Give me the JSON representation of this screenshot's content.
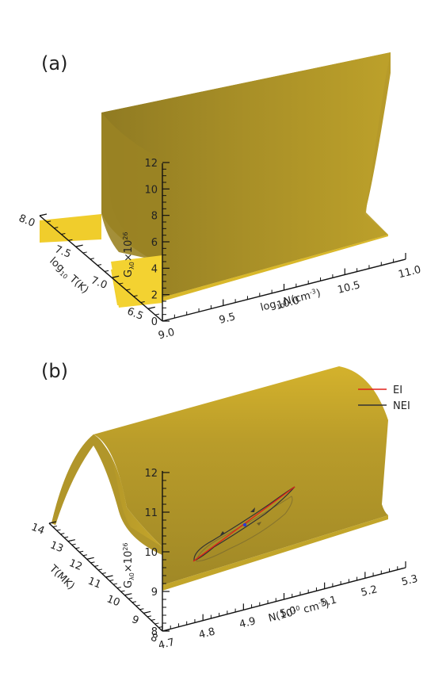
{
  "chart_data": [
    {
      "type": "surface",
      "panel_label": "(a)",
      "x_axis": {
        "label": "log",
        "label_sub": "10",
        "label_rest": "N(cm",
        "label_sup": "-3",
        "label_close": ")",
        "range": [
          9.0,
          11.0
        ],
        "ticks": [
          "9.0",
          "9.5",
          "10.0",
          "10.5",
          "11.0"
        ]
      },
      "y_axis": {
        "label": "log",
        "label_sub": "10",
        "label_rest": " T(K)",
        "range": [
          6.3,
          8.0
        ],
        "ticks": [
          "6.5",
          "7.0",
          "7.5",
          "8.0"
        ]
      },
      "z_axis": {
        "label": "G",
        "label_sub": "λ0",
        "label_rest": "×10",
        "label_sup": "26",
        "range": [
          0,
          12
        ],
        "ticks": [
          "0",
          "2",
          "4",
          "6",
          "8",
          "10",
          "12"
        ]
      },
      "surface": {
        "peak_logT": 7.3,
        "peak_value": 12.3,
        "floor_value": 0.2,
        "description_color": "#d6b420"
      }
    },
    {
      "type": "surface",
      "panel_label": "(b)",
      "x_axis": {
        "label": "N(10",
        "label_sup": "10",
        "label_rest": " cm",
        "label_sup2": "-3",
        "label_close": ")",
        "range": [
          4.7,
          5.3
        ],
        "ticks": [
          "4.7",
          "4.8",
          "4.9",
          "5.0",
          "5.1",
          "5.2",
          "5.3"
        ]
      },
      "y_axis": {
        "label": "T(MK)",
        "range": [
          8,
          14
        ],
        "ticks": [
          "8",
          "9",
          "10",
          "11",
          "12",
          "13",
          "14"
        ]
      },
      "z_axis": {
        "label": "G",
        "label_sub": "λ0",
        "label_rest": "×10",
        "label_sup": "26",
        "range": [
          8,
          12
        ],
        "ticks": [
          "8",
          "9",
          "10",
          "11",
          "12"
        ]
      },
      "legend": {
        "position": "top-right",
        "entries": [
          {
            "name": "EI",
            "color": "#e0201a"
          },
          {
            "name": "NEI",
            "color": "#333333"
          }
        ]
      },
      "surface": {
        "peak_T": 11,
        "peak_value": 12.0,
        "edge_value": 9.6
      }
    }
  ],
  "colors": {
    "surface_light": "#e8c42a",
    "surface_mid": "#c9a72a",
    "surface_dark": "#a48a26",
    "axis": "#111111",
    "ei_line": "#e0201a",
    "nei_line": "#333333",
    "marker": "#2a3fd0"
  }
}
